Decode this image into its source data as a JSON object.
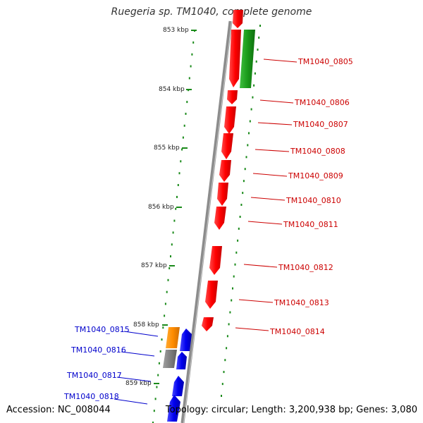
{
  "header": {
    "title": "Ruegeria sp. TM1040, complete genome"
  },
  "footer": {
    "accession": "Accession: NC_008044",
    "topology": "Topology: circular; Length: 3,200,938 bp; Genes: 3,080"
  },
  "scale_labels": [
    "853 kbp",
    "854 kbp",
    "855 kbp",
    "856 kbp",
    "857 kbp",
    "858 kbp",
    "859 kbp"
  ],
  "colors": {
    "backbone": "#8c8c8c",
    "forward_gene": "#ff0000",
    "orange_gene": "#ff8c00",
    "green_gene": "#1a9a1a",
    "grey_gene": "#808080",
    "blue_gene": "#0000ee",
    "tick": "#1a8a1a",
    "red_label": "#cc0000",
    "blue_label": "#0000cc"
  },
  "right_genes": [
    {
      "name": "TM1040_0805"
    },
    {
      "name": "TM1040_0806"
    },
    {
      "name": "TM1040_0807"
    },
    {
      "name": "TM1040_0808"
    },
    {
      "name": "TM1040_0809"
    },
    {
      "name": "TM1040_0810"
    },
    {
      "name": "TM1040_0811"
    },
    {
      "name": "TM1040_0812"
    },
    {
      "name": "TM1040_0813"
    },
    {
      "name": "TM1040_0814"
    }
  ],
  "left_genes": [
    {
      "name": "TM1040_0815"
    },
    {
      "name": "TM1040_0816"
    },
    {
      "name": "TM1040_0817"
    },
    {
      "name": "TM1040_0818"
    }
  ]
}
